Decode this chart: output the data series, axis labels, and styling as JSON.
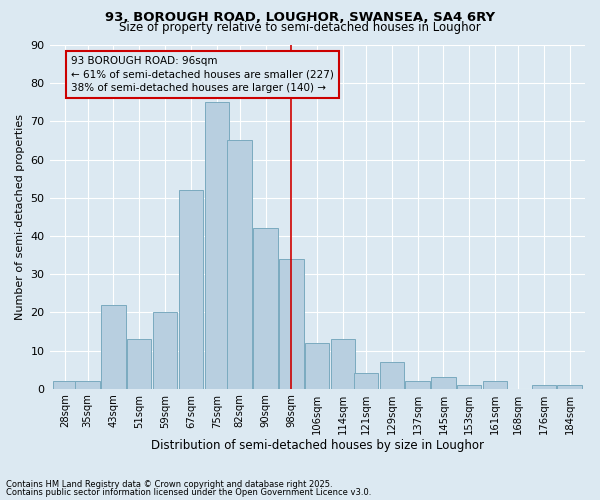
{
  "title1": "93, BOROUGH ROAD, LOUGHOR, SWANSEA, SA4 6RY",
  "title2": "Size of property relative to semi-detached houses in Loughor",
  "xlabel": "Distribution of semi-detached houses by size in Loughor",
  "ylabel": "Number of semi-detached properties",
  "footnote1": "Contains HM Land Registry data © Crown copyright and database right 2025.",
  "footnote2": "Contains public sector information licensed under the Open Government Licence v3.0.",
  "annotation_title": "93 BOROUGH ROAD: 96sqm",
  "annotation_line1": "← 61% of semi-detached houses are smaller (227)",
  "annotation_line2": "38% of semi-detached houses are larger (140) →",
  "subject_value": 98,
  "bin_centers": [
    28,
    35,
    43,
    51,
    59,
    67,
    75,
    82,
    90,
    98,
    106,
    114,
    121,
    129,
    137,
    145,
    153,
    161,
    168,
    176,
    184
  ],
  "bin_labels": [
    "28sqm",
    "35sqm",
    "43sqm",
    "51sqm",
    "59sqm",
    "67sqm",
    "75sqm",
    "82sqm",
    "90sqm",
    "98sqm",
    "106sqm",
    "114sqm",
    "121sqm",
    "129sqm",
    "137sqm",
    "145sqm",
    "153sqm",
    "161sqm",
    "168sqm",
    "176sqm",
    "184sqm"
  ],
  "counts": [
    2,
    2,
    22,
    13,
    20,
    52,
    75,
    65,
    42,
    34,
    12,
    13,
    4,
    7,
    2,
    3,
    1,
    2,
    0,
    1,
    1
  ],
  "bar_color": "#b8cfe0",
  "bar_edge_color": "#7aaabf",
  "annotation_box_color": "#cc0000",
  "subject_line_color": "#cc0000",
  "background_color": "#dce9f2",
  "grid_color": "#ffffff",
  "ylim": [
    0,
    90
  ],
  "yticks": [
    0,
    10,
    20,
    30,
    40,
    50,
    60,
    70,
    80,
    90
  ]
}
